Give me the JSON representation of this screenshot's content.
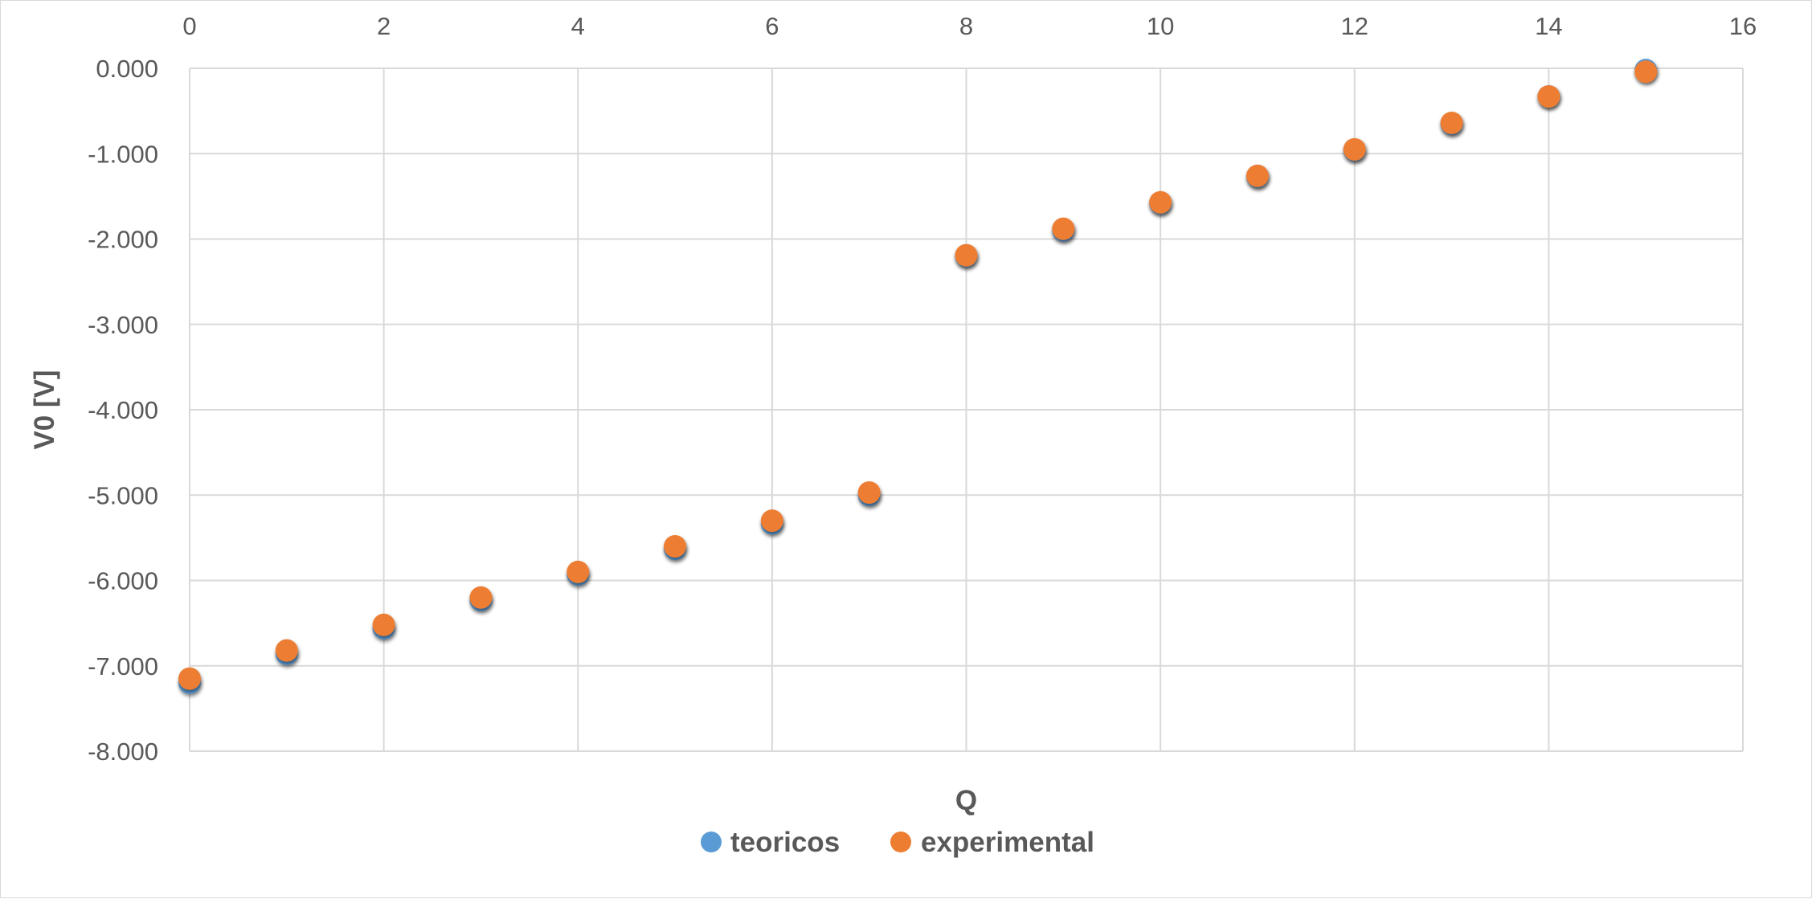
{
  "chart_data": {
    "type": "scatter",
    "title": "",
    "xlabel": "Q",
    "ylabel": "V0 [V]",
    "xlim": [
      0,
      16
    ],
    "ylim": [
      -8,
      0
    ],
    "x_ticks": [
      0,
      2,
      4,
      6,
      8,
      10,
      12,
      14,
      16
    ],
    "x_tick_labels": [
      "0",
      "2",
      "4",
      "6",
      "8",
      "10",
      "12",
      "14",
      "16"
    ],
    "y_ticks": [
      0,
      -1,
      -2,
      -3,
      -4,
      -5,
      -6,
      -7,
      -8
    ],
    "y_tick_labels": [
      "0.000",
      "-1.000",
      "-2.000",
      "-3.000",
      "-4.000",
      "-5.000",
      "-6.000",
      "-7.000",
      "-8.000"
    ],
    "x_axis_position": "top",
    "grid": true,
    "legend_position": "bottom",
    "series": [
      {
        "name": "teoricos",
        "color": "#5b9bd5",
        "x": [
          0,
          1,
          2,
          3,
          4,
          5,
          6,
          7,
          8,
          9,
          10,
          11,
          12,
          13,
          14,
          15
        ],
        "y": [
          -7.2,
          -6.86,
          -6.56,
          -6.23,
          -5.93,
          -5.63,
          -5.33,
          -5.0,
          -2.2,
          -1.9,
          -1.58,
          -1.27,
          -0.96,
          -0.65,
          -0.33,
          -0.02
        ]
      },
      {
        "name": "experimental",
        "color": "#ed7d31",
        "x": [
          0,
          1,
          2,
          3,
          4,
          5,
          6,
          7,
          8,
          9,
          10,
          11,
          12,
          13,
          14,
          15
        ],
        "y": [
          -7.15,
          -6.82,
          -6.52,
          -6.2,
          -5.9,
          -5.6,
          -5.3,
          -4.97,
          -2.19,
          -1.88,
          -1.57,
          -1.26,
          -0.95,
          -0.64,
          -0.33,
          -0.04
        ]
      }
    ]
  }
}
